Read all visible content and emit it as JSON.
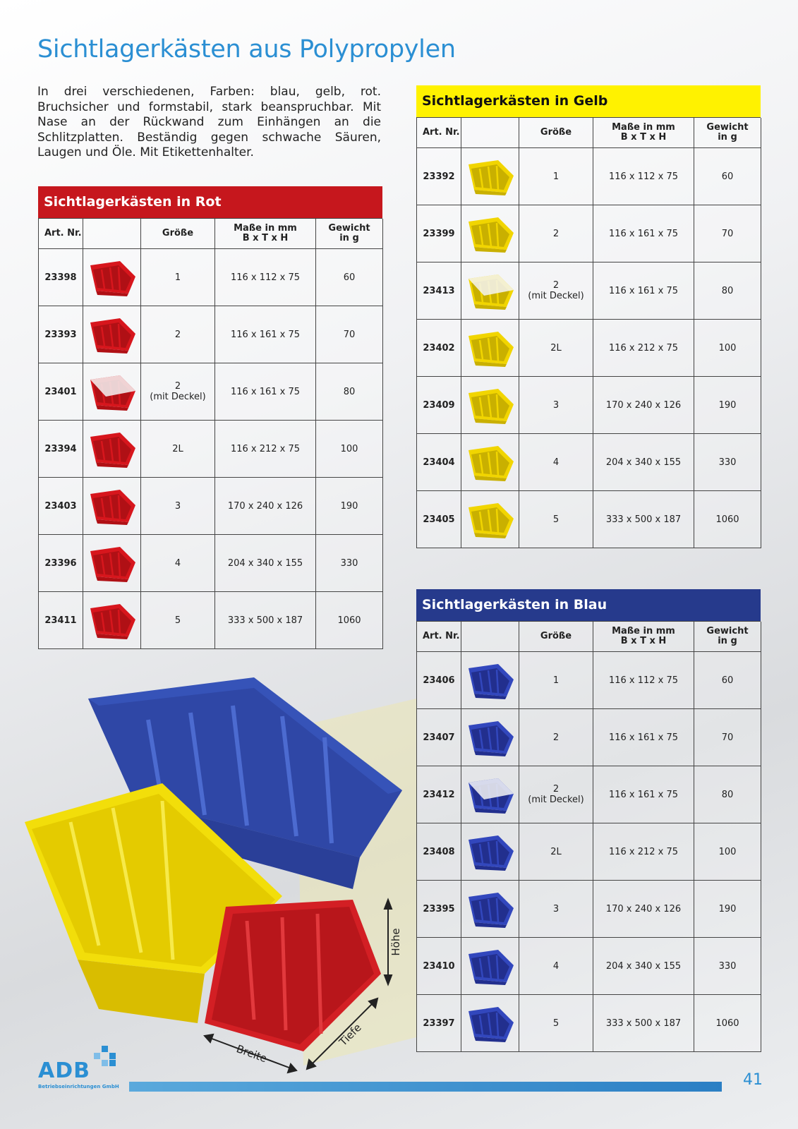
{
  "title": "Sichtlagerkästen aus Polypropylen",
  "intro": "In drei verschiedenen, Farben: blau, gelb, rot. Bruchsicher und formstabil, stark beanspruchbar. Mit Nase an der Rückwand zum Einhängen an die Schlitzplatten. Beständig gegen schwache Säuren, Laugen und Öle. Mit Etikettenhalter.",
  "tables": [
    {
      "title": "Sichtlagerkästen in Rot",
      "headers": [
        "Art. Nr.",
        "Größe",
        "Maße in mm\nB x T x H",
        "Gewicht\nin g"
      ],
      "rows": [
        [
          "23398",
          "1",
          "116 x 112 x 75",
          "60"
        ],
        [
          "23393",
          "2",
          "116 x 161 x 75",
          "70"
        ],
        [
          "23401",
          "2\n(mit Deckel)",
          "116 x 161 x 75",
          "80"
        ],
        [
          "23394",
          "2L",
          "116 x 212 x 75",
          "100"
        ],
        [
          "23403",
          "3",
          "170 x 240 x 126",
          "190"
        ],
        [
          "23396",
          "4",
          "204 x 340 x 155",
          "330"
        ],
        [
          "23411",
          "5",
          "333 x 500 x 187",
          "1060"
        ]
      ]
    },
    {
      "title": "Sichtlagerkästen in Gelb",
      "headers": [
        "Art. Nr.",
        "Größe",
        "Maße in mm\nB x T x H",
        "Gewicht\nin g"
      ],
      "rows": [
        [
          "23392",
          "1",
          "116 x 112 x 75",
          "60"
        ],
        [
          "23399",
          "2",
          "116 x 161 x 75",
          "70"
        ],
        [
          "23413",
          "2\n(mit Deckel)",
          "116 x 161 x 75",
          "80"
        ],
        [
          "23402",
          "2L",
          "116 x 212 x 75",
          "100"
        ],
        [
          "23409",
          "3",
          "170 x 240 x 126",
          "190"
        ],
        [
          "23404",
          "4",
          "204 x 340 x 155",
          "330"
        ],
        [
          "23405",
          "5",
          "333 x 500 x 187",
          "1060"
        ]
      ]
    },
    {
      "title": "Sichtlagerkästen in Blau",
      "headers": [
        "Art. Nr.",
        "Größe",
        "Maße in mm\nB x T x H",
        "Gewicht\nin g"
      ],
      "rows": [
        [
          "23406",
          "1",
          "116 x 112 x 75",
          "60"
        ],
        [
          "23407",
          "2",
          "116 x 161 x 75",
          "70"
        ],
        [
          "23412",
          "2\n(mit Deckel)",
          "116 x 161 x 75",
          "80"
        ],
        [
          "23408",
          "2L",
          "116 x 212 x 75",
          "100"
        ],
        [
          "23395",
          "3",
          "170 x 240 x 126",
          "190"
        ],
        [
          "23410",
          "4",
          "204 x 340 x 155",
          "330"
        ],
        [
          "23397",
          "5",
          "333 x 500 x 187",
          "1060"
        ]
      ]
    }
  ],
  "photo_labels": {
    "height": "Höhe",
    "width": "Breite",
    "depth": "Tiefe"
  },
  "logo": {
    "name": "ADB",
    "tagline": "Betriebseinrichtungen GmbH"
  },
  "page_number": "41"
}
